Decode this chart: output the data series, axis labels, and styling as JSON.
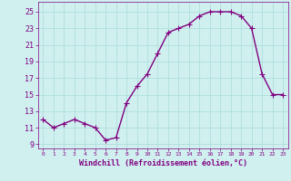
{
  "x": [
    0,
    1,
    2,
    3,
    4,
    5,
    6,
    7,
    8,
    9,
    10,
    11,
    12,
    13,
    14,
    15,
    16,
    17,
    18,
    19,
    20,
    21,
    22,
    23
  ],
  "y": [
    12.0,
    11.0,
    11.5,
    12.0,
    11.5,
    11.0,
    9.5,
    9.8,
    14.0,
    16.0,
    17.5,
    20.0,
    22.5,
    23.0,
    23.5,
    24.5,
    25.0,
    25.0,
    25.0,
    24.5,
    23.0,
    17.5,
    15.0,
    15.0
  ],
  "line_color": "#800080",
  "marker": "+",
  "markersize": 4,
  "linewidth": 1.0,
  "markeredgewidth": 0.8,
  "xlabel": "Windchill (Refroidissement éolien,°C)",
  "xlabel_fontsize": 6,
  "bg_color": "#d0f0f0",
  "grid_color": "#b0dede",
  "tick_color": "#800080",
  "label_color": "#800080",
  "xlim": [
    -0.5,
    23.5
  ],
  "ylim": [
    8.5,
    26.2
  ],
  "yticks": [
    9,
    11,
    13,
    15,
    17,
    19,
    21,
    23,
    25
  ],
  "xticks": [
    0,
    1,
    2,
    3,
    4,
    5,
    6,
    7,
    8,
    9,
    10,
    11,
    12,
    13,
    14,
    15,
    16,
    17,
    18,
    19,
    20,
    21,
    22,
    23
  ],
  "ytick_fontsize": 6,
  "xtick_fontsize": 4.5
}
